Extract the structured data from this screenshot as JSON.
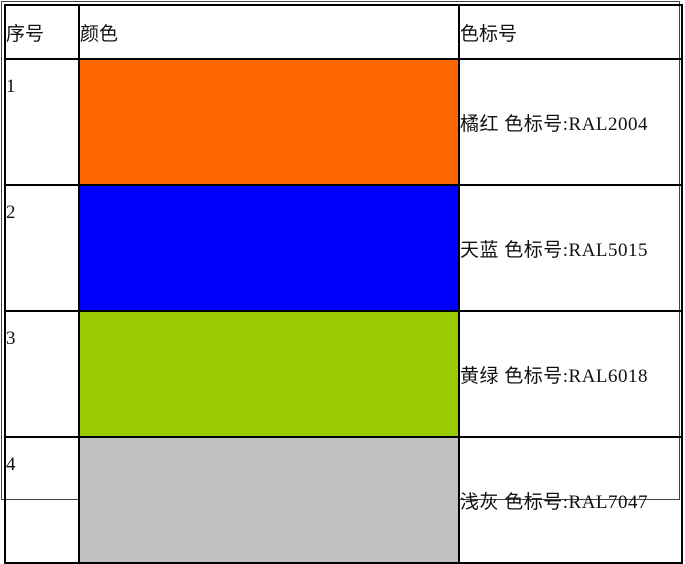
{
  "table": {
    "headers": [
      "序号",
      "颜色",
      "色标号"
    ],
    "rows": [
      {
        "index": "1",
        "color": "#FF6600",
        "name": "橘红  色标号:RAL2004"
      },
      {
        "index": "2",
        "color": "#0000FF",
        "name": "天蓝  色标号:RAL5015"
      },
      {
        "index": "3",
        "color": "#99CC00",
        "name": "黄绿  色标号:RAL6018"
      },
      {
        "index": "4",
        "color": "#C0C0C0",
        "name": "浅灰  色标号:RAL7047"
      }
    ]
  }
}
